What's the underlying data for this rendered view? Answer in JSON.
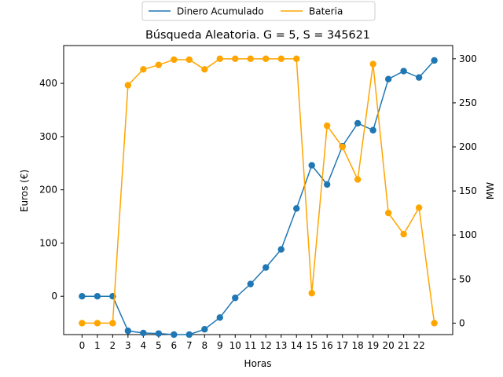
{
  "chart_data": {
    "type": "line",
    "title": "Búsqueda Aleatoria. G = 5, S = 345621",
    "xlabel": "Horas",
    "ylabel_left": "Euros (€)",
    "ylabel_right": "MW",
    "x": [
      0,
      1,
      2,
      3,
      4,
      5,
      6,
      7,
      8,
      9,
      10,
      11,
      12,
      13,
      14,
      15,
      16,
      17,
      18,
      19,
      20,
      21,
      22,
      23
    ],
    "xticks": [
      "0",
      "1",
      "2",
      "3",
      "4",
      "5",
      "6",
      "7",
      "8",
      "9",
      "10",
      "11",
      "12",
      "13",
      "14",
      "15",
      "16",
      "17",
      "18",
      "19",
      "20",
      "21",
      "22"
    ],
    "ylim_left": [
      -72,
      471
    ],
    "yticks_left": [
      0,
      100,
      200,
      300,
      400
    ],
    "ylim_right": [
      -13,
      315
    ],
    "yticks_right": [
      0,
      50,
      100,
      150,
      200,
      250,
      300
    ],
    "grid": false,
    "legend_position": "top-center",
    "series": [
      {
        "name": "Dinero Acumulado",
        "axis": "left",
        "color": "#1f77b4",
        "values": [
          0,
          0,
          0,
          -65,
          -69,
          -70,
          -72,
          -72,
          -62,
          -40,
          -3,
          23,
          54,
          88,
          165,
          246,
          210,
          282,
          325,
          312,
          408,
          423,
          411,
          443
        ]
      },
      {
        "name": "Bateria",
        "axis": "right",
        "color": "#ffa500",
        "values": [
          0,
          0,
          0,
          270,
          288,
          293,
          299,
          299,
          288,
          300,
          300,
          300,
          300,
          300,
          300,
          34,
          224,
          200,
          163,
          294,
          125,
          101,
          131,
          0
        ]
      }
    ]
  }
}
